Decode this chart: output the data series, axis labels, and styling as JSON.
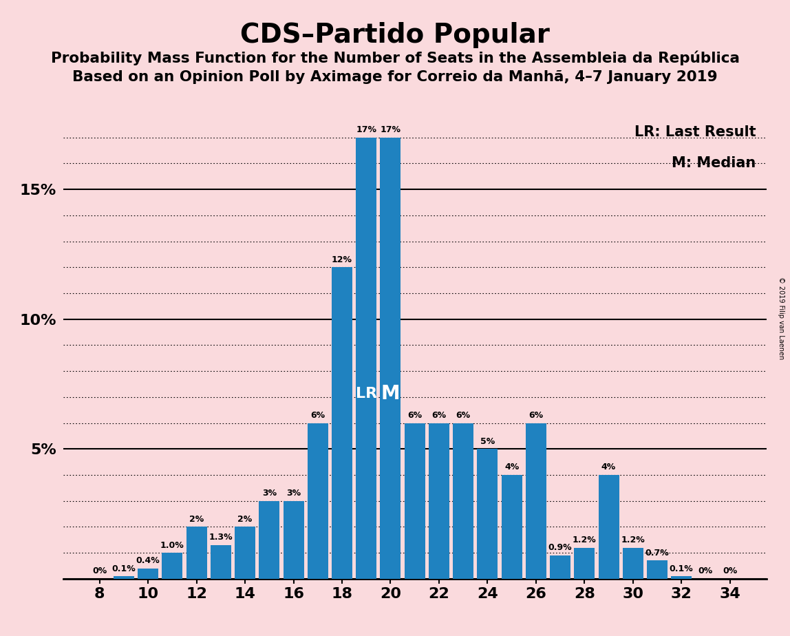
{
  "title": "CDS–Partido Popular",
  "subtitle1": "Probability Mass Function for the Number of Seats in the Assembleia da República",
  "subtitle2": "Based on an Opinion Poll by Aximage for Correio da Manhã, 4–7 January 2019",
  "copyright": "© 2019 Filip van Laenen",
  "legend_lr": "LR: Last Result",
  "legend_m": "M: Median",
  "seats": [
    8,
    9,
    10,
    11,
    12,
    13,
    14,
    15,
    16,
    17,
    18,
    19,
    20,
    21,
    22,
    23,
    24,
    25,
    26,
    27,
    28,
    29,
    30,
    31,
    32,
    33,
    34
  ],
  "values": [
    0.0,
    0.1,
    0.4,
    1.0,
    2.0,
    1.3,
    2.0,
    3.0,
    3.0,
    6.0,
    12.0,
    17.0,
    17.0,
    6.0,
    6.0,
    6.0,
    5.0,
    4.0,
    6.0,
    0.9,
    1.2,
    4.0,
    1.2,
    0.7,
    0.1,
    0.0,
    0.0
  ],
  "labels": [
    "0%",
    "0.1%",
    "0.4%",
    "1.0%",
    "2%",
    "1.3%",
    "2%",
    "3%",
    "3%",
    "6%",
    "12%",
    "17%",
    "17%",
    "6%",
    "6%",
    "6%",
    "5%",
    "4%",
    "6%",
    "0.9%",
    "1.2%",
    "4%",
    "1.2%",
    "0.7%",
    "0.1%",
    "0%",
    "0%"
  ],
  "bar_color": "#1f82c0",
  "background_color": "#fadadd",
  "lr_seat": 19,
  "median_seat": 20,
  "ylim_max": 18.5,
  "title_fontsize": 28,
  "subtitle_fontsize": 15.5,
  "label_fontsize": 9,
  "axis_fontsize": 16,
  "legend_fontsize": 15,
  "copyright_fontsize": 7
}
